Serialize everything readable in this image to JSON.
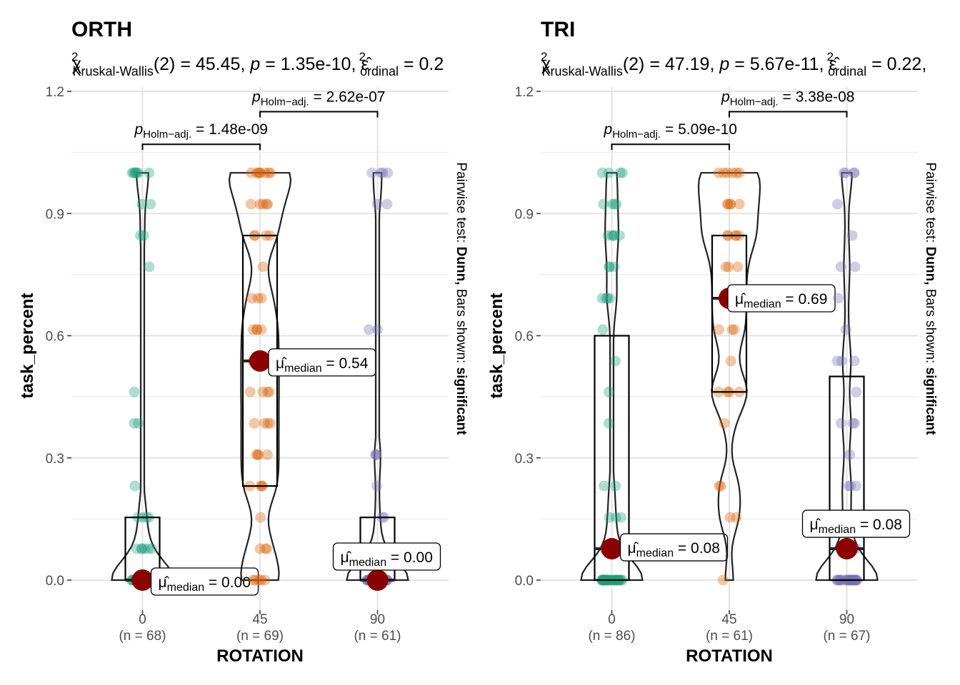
{
  "chart_data": [
    {
      "type": "box-violin",
      "title": "ORTH",
      "stat": {
        "name": "Kruskal-Wallis",
        "df": "2",
        "statistic": "45.45",
        "p": "1.35e-10",
        "effsize": "0.2"
      },
      "xlabel": "ROTATION",
      "ylabel": "task_percent",
      "ylim": [
        -0.06,
        1.25
      ],
      "yticks": [
        "0.0",
        "0.3",
        "0.6",
        "0.9",
        "1.2"
      ],
      "caption": {
        "prefix": "Pairwise test: ",
        "test": "Dunn,",
        "mid": " Bars shown: ",
        "bars": "significant"
      },
      "groups": [
        {
          "label": "0",
          "n": "(n = 68)",
          "color": "#1B9E77",
          "q1": 0.0,
          "median": 0.0,
          "q3": 0.154,
          "mean_label": "0.00",
          "points": [
            0,
            0,
            0,
            0,
            0,
            0,
            0,
            0,
            0,
            0,
            0,
            0,
            0,
            0,
            0,
            0,
            0,
            0,
            0,
            0,
            0,
            0,
            0,
            0,
            0,
            0,
            0,
            0,
            0,
            0,
            0,
            0,
            0,
            0,
            0,
            0,
            0,
            0,
            0.077,
            0.077,
            0.077,
            0.077,
            0.077,
            0.077,
            0.154,
            0.154,
            0.154,
            0.154,
            0.231,
            0.385,
            0.385,
            0.462,
            0.769,
            0.846,
            0.846,
            0.923,
            0.923,
            1,
            1,
            1,
            1,
            1,
            1,
            1
          ]
        },
        {
          "label": "45",
          "n": "(n = 69)",
          "color": "#D95F02",
          "q1": 0.231,
          "median": 0.538,
          "q3": 0.846,
          "mean_label": "0.54",
          "points": [
            0,
            0,
            0,
            0,
            0,
            0.077,
            0.077,
            0.077,
            0.154,
            0.231,
            0.231,
            0.231,
            0.231,
            0.308,
            0.308,
            0.308,
            0.308,
            0.385,
            0.385,
            0.385,
            0.385,
            0.462,
            0.462,
            0.462,
            0.462,
            0.538,
            0.538,
            0.538,
            0.538,
            0.615,
            0.615,
            0.615,
            0.615,
            0.692,
            0.692,
            0.692,
            0.769,
            0.846,
            0.846,
            0.846,
            0.846,
            0.923,
            0.923,
            0.923,
            0.923,
            0.923,
            1,
            1,
            1,
            1,
            1,
            1,
            1,
            1
          ]
        },
        {
          "label": "90",
          "n": "(n = 61)",
          "color": "#7570B3",
          "q1": 0.0,
          "median": 0.0,
          "q3": 0.154,
          "mean_label": "0.00",
          "points": [
            0,
            0,
            0,
            0,
            0,
            0,
            0,
            0,
            0,
            0,
            0,
            0,
            0,
            0,
            0,
            0,
            0,
            0,
            0,
            0,
            0,
            0,
            0,
            0,
            0,
            0,
            0,
            0,
            0,
            0,
            0,
            0,
            0,
            0.077,
            0.077,
            0.077,
            0.154,
            0.154,
            0.231,
            0.308,
            0.308,
            0.308,
            0.615,
            0.615,
            0.923,
            0.923,
            1,
            1,
            1,
            1
          ]
        }
      ],
      "pairwise": [
        {
          "from": 0,
          "to": 1,
          "p": "1.48e-09"
        },
        {
          "from": 1,
          "to": 2,
          "p": "2.62e-07"
        }
      ]
    },
    {
      "type": "box-violin",
      "title": "TRI",
      "stat": {
        "name": "Kruskal-Wallis",
        "df": "2",
        "statistic": "47.19",
        "p": "5.67e-11",
        "effsize": "0.22,"
      },
      "xlabel": "ROTATION",
      "ylabel": "task_percent",
      "ylim": [
        -0.06,
        1.25
      ],
      "yticks": [
        "0.0",
        "0.3",
        "0.6",
        "0.9",
        "1.2"
      ],
      "caption": {
        "prefix": "Pairwise test: ",
        "test": "Dunn,",
        "mid": " Bars shown: ",
        "bars": "significant"
      },
      "groups": [
        {
          "label": "0",
          "n": "(n = 86)",
          "color": "#1B9E77",
          "q1": 0.0,
          "median": 0.077,
          "q3": 0.6,
          "mean_label": "0.08",
          "points": [
            0,
            0,
            0,
            0,
            0,
            0,
            0,
            0,
            0,
            0,
            0,
            0,
            0,
            0,
            0,
            0,
            0,
            0,
            0,
            0,
            0,
            0,
            0,
            0,
            0,
            0,
            0,
            0,
            0,
            0,
            0.077,
            0.077,
            0.077,
            0.077,
            0.154,
            0.154,
            0.154,
            0.231,
            0.231,
            0.385,
            0.462,
            0.538,
            0.615,
            0.692,
            0.692,
            0.692,
            0.692,
            0.769,
            0.769,
            0.769,
            0.846,
            0.846,
            0.846,
            0.846,
            0.846,
            0.923,
            0.923,
            0.923,
            0.923,
            1,
            1,
            1,
            1
          ]
        },
        {
          "label": "45",
          "n": "(n = 61)",
          "color": "#D95F02",
          "q1": 0.462,
          "median": 0.692,
          "q3": 0.846,
          "mean_label": "0.69",
          "points": [
            0,
            0.154,
            0.154,
            0.231,
            0.231,
            0.385,
            0.462,
            0.462,
            0.462,
            0.462,
            0.538,
            0.615,
            0.615,
            0.615,
            0.692,
            0.692,
            0.692,
            0.769,
            0.769,
            0.769,
            0.846,
            0.846,
            0.846,
            0.846,
            0.846,
            0.923,
            0.923,
            0.923,
            0.923,
            0.923,
            1,
            1,
            1,
            1,
            1,
            1
          ]
        },
        {
          "label": "90",
          "n": "(n = 67)",
          "color": "#7570B3",
          "q1": 0.0,
          "median": 0.077,
          "q3": 0.5,
          "mean_label": "0.08",
          "points": [
            0,
            0,
            0,
            0,
            0,
            0,
            0,
            0,
            0,
            0,
            0,
            0,
            0,
            0,
            0,
            0,
            0,
            0,
            0,
            0,
            0,
            0,
            0,
            0,
            0,
            0.077,
            0.077,
            0.077,
            0.077,
            0.154,
            0.154,
            0.231,
            0.231,
            0.231,
            0.308,
            0.385,
            0.385,
            0.385,
            0.462,
            0.538,
            0.538,
            0.538,
            0.615,
            0.692,
            0.769,
            0.769,
            0.846,
            0.923,
            1,
            1,
            1,
            1
          ]
        }
      ],
      "pairwise": [
        {
          "from": 0,
          "to": 1,
          "p": "5.09e-10"
        },
        {
          "from": 1,
          "to": 2,
          "p": "3.38e-08"
        }
      ]
    }
  ]
}
